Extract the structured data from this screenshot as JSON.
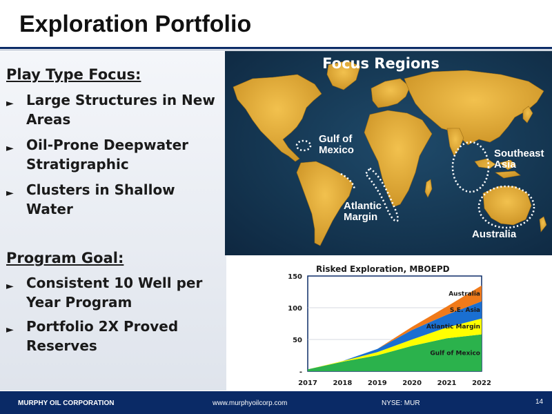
{
  "slide": {
    "title": "Exploration Portfolio"
  },
  "left": {
    "play_heading": "Play Type Focus:",
    "play_bullets": [
      "Large Structures in New Areas",
      "Oil-Prone Deepwater Stratigraphic",
      "Clusters in Shallow Water"
    ],
    "goal_heading": "Program Goal:",
    "goal_bullets": [
      "Consistent 10 Well per Year Program",
      "Portfolio 2X Proved Reserves"
    ]
  },
  "map": {
    "title": "Focus Regions",
    "regions": {
      "gulf": [
        "Gulf of",
        "Mexico"
      ],
      "atlantic": [
        "Atlantic",
        "Margin"
      ],
      "southeast": [
        "Southeast",
        "Asia"
      ],
      "australia": "Australia"
    }
  },
  "colors": {
    "navy": "#0a2a66",
    "gulf_of_mexico": "#2bb24c",
    "atlantic_margin": "#ffff00",
    "se_asia": "#1a6fd1",
    "australia": "#f07a1a",
    "land": "#e3a93a"
  },
  "chart_data": {
    "type": "area",
    "stacked": true,
    "title": "Risked Exploration, MBOEPD",
    "x": [
      "2017",
      "2018",
      "2019",
      "2020",
      "2021",
      "2022"
    ],
    "ylim": [
      0,
      150
    ],
    "yticks": [
      "-",
      "50",
      "100",
      "150"
    ],
    "ytick_values": [
      0,
      50,
      100,
      150
    ],
    "series": [
      {
        "name": "Gulf of Mexico",
        "values": [
          3,
          15,
          25,
          40,
          52,
          58
        ]
      },
      {
        "name": "Atlantic Margin",
        "values": [
          0,
          1,
          5,
          10,
          17,
          25
        ]
      },
      {
        "name": "S.E. Asia",
        "values": [
          0,
          0,
          5,
          15,
          20,
          27
        ]
      },
      {
        "name": "Australia",
        "values": [
          0,
          0,
          0,
          5,
          13,
          25
        ]
      }
    ]
  },
  "footer": {
    "company": "MURPHY OIL CORPORATION",
    "url": "www.murphyoilcorp.com",
    "ticker": "NYSE: MUR",
    "page": "14"
  }
}
